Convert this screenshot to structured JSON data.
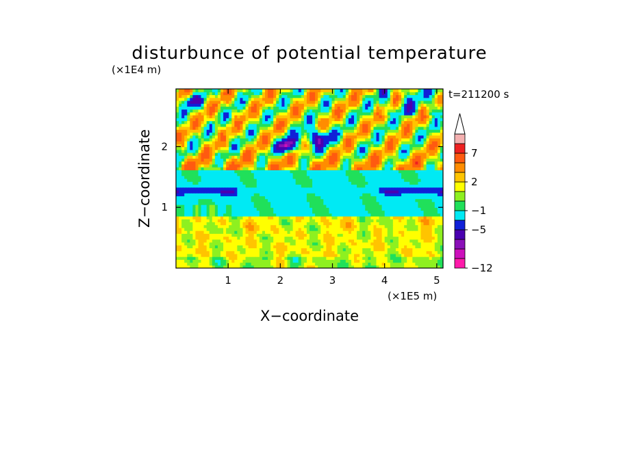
{
  "chart_data": {
    "type": "heatmap",
    "title": "disturbunce of potential temperature",
    "xlabel": "X−coordinate",
    "ylabel": "Z−coordinate",
    "x_unit": "(×1E5 m)",
    "y_unit": "(×1E4 m)",
    "time_label": "t=211200 s",
    "xlim": [
      0,
      5.12
    ],
    "ylim": [
      0,
      2.95
    ],
    "x_ticks": [
      1,
      2,
      3,
      4,
      5
    ],
    "y_ticks": [
      1,
      2
    ],
    "x_tick_labels": [
      "1",
      "2",
      "3",
      "4",
      "5"
    ],
    "y_tick_labels": [
      "1",
      "2"
    ],
    "color_levels": [
      -12,
      -10,
      -8,
      -7,
      -5,
      -3,
      -1,
      0,
      1,
      2,
      3,
      5,
      7,
      9,
      11
    ],
    "colorbar_labels": [
      {
        "value": 7,
        "label": "7"
      },
      {
        "value": 2,
        "label": "2"
      },
      {
        "value": -1,
        "label": "−1"
      },
      {
        "value": -5,
        "label": "−5"
      },
      {
        "value": -12,
        "label": "−12"
      }
    ],
    "colorbar_colors": [
      "#ff1aaa",
      "#cc10bb",
      "#8a10b8",
      "#4a00b0",
      "#1020d8",
      "#00eaf4",
      "#20e05a",
      "#8ef020",
      "#ffff00",
      "#ffc400",
      "#ff8c00",
      "#ff5a10",
      "#ee2020",
      "#f4b0b0"
    ],
    "field_features": [
      {
        "name": "mid-level cold band",
        "x_range": [
          0,
          5.12
        ],
        "z_range": [
          0.85,
          1.6
        ],
        "value": -2
      },
      {
        "name": "low-level warm layer",
        "x_range": [
          0,
          5.12
        ],
        "z_range": [
          0.0,
          0.8
        ],
        "value": 1.5
      },
      {
        "name": "upper warm wave crests",
        "x_range": [
          0,
          5.12
        ],
        "z_range": [
          1.6,
          2.95
        ],
        "value": 3
      },
      {
        "name": "cold cores aloft",
        "x_range": [
          1.8,
          3.2
        ],
        "z_range": [
          1.9,
          2.3
        ],
        "value": -7
      }
    ]
  }
}
